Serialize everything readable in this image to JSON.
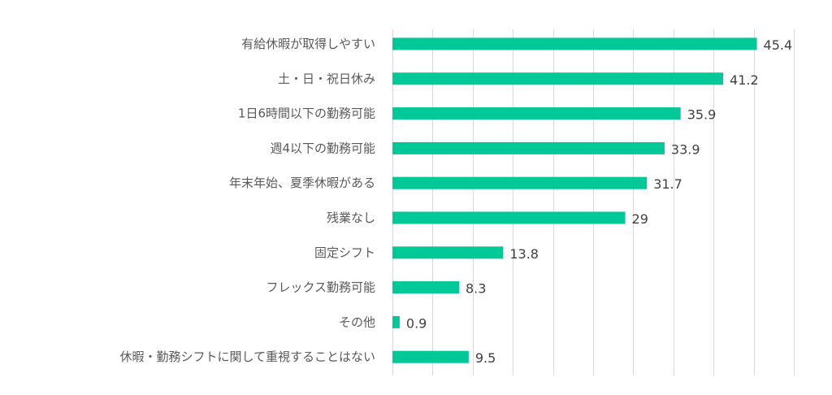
{
  "chart_data": {
    "type": "bar",
    "orientation": "horizontal",
    "categories": [
      "有給休暇が取得しやすい",
      "土・日・祝日休み",
      "1日6時間以下の勤務可能",
      "週4以下の勤務可能",
      "年末年始、夏季休暇がある",
      "残業なし",
      "固定シフト",
      "フレックス勤務可能",
      "その他",
      "休暇・勤務シフトに関して重視することはない"
    ],
    "values": [
      45.4,
      41.2,
      35.9,
      33.9,
      31.7,
      29,
      13.8,
      8.3,
      0.9,
      9.5
    ],
    "data_labels": [
      "45.4",
      "41.2",
      "35.9",
      "33.9",
      "31.7",
      "29",
      "13.8",
      "8.3",
      "0.9",
      "9.5"
    ],
    "xlim": [
      0,
      50
    ],
    "grid_step": 5,
    "grid": true,
    "x_tick_labels_shown": false,
    "legend": "none",
    "bar_color": "#00c896",
    "grid_color": "#d9d9d9",
    "title": "",
    "xlabel": "",
    "ylabel": ""
  }
}
